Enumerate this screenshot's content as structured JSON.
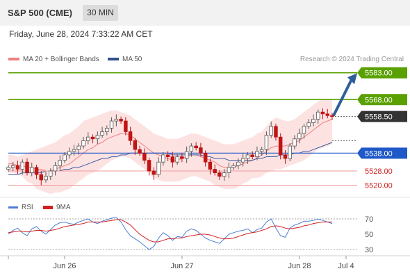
{
  "header": {
    "title": "S&P 500 (CME)",
    "interval": "30 MIN"
  },
  "datetime": "Friday, June 28, 2024 7:33:22 AM CET",
  "legend": [
    {
      "label": "MA 20 + Bollinger Bands",
      "color": "#f08080"
    },
    {
      "label": "MA 50",
      "color": "#2f4f8f"
    }
  ],
  "credit": "Research © 2024 Trading Central",
  "rsi_legend": [
    {
      "label": "RSI",
      "color": "#4a7fd4"
    },
    {
      "label": "9MA",
      "color": "#d22020"
    }
  ],
  "colors": {
    "resistance": "#5aa000",
    "support": "#1f58c7",
    "level_line": "#ef9a9a",
    "arrow": "#2f5f9a",
    "price_label": "#333333",
    "bollinger_fill": "#fde2e2",
    "candle_up": "#555555",
    "candle_down": "#c01515"
  },
  "chart_data": {
    "type": "candlestick",
    "price_axis": {
      "min": 5514,
      "max": 5586
    },
    "x_ticks": [
      "Jun 26",
      "Jun 27",
      "Jun 28",
      "Jul 4"
    ],
    "levels": [
      {
        "value": 5583.0,
        "label": "5583.00",
        "kind": "resistance"
      },
      {
        "value": 5568.0,
        "label": "5568.00",
        "kind": "resistance"
      },
      {
        "value": 5558.5,
        "label": "5558.50",
        "kind": "last"
      },
      {
        "value": 5538.0,
        "label": "5538.00",
        "kind": "support"
      },
      {
        "value": 5528.0,
        "label": "5528.00",
        "kind": "level"
      },
      {
        "value": 5520.0,
        "label": "5520.00",
        "kind": "level"
      }
    ],
    "forecast_arrow": {
      "from": 5559,
      "to": 5582
    },
    "close": [
      5530,
      5531,
      5529,
      5533,
      5527,
      5530,
      5526,
      5523,
      5525,
      5528,
      5531,
      5534,
      5537,
      5539,
      5540,
      5542,
      5545,
      5547,
      5546,
      5548,
      5550,
      5552,
      5556,
      5557,
      5556,
      5550,
      5545,
      5540,
      5538,
      5534,
      5528,
      5526,
      5533,
      5537,
      5536,
      5533,
      5536,
      5535,
      5539,
      5542,
      5541,
      5538,
      5533,
      5529,
      5527,
      5525,
      5527,
      5530,
      5531,
      5533,
      5535,
      5537,
      5536,
      5539,
      5540,
      5548,
      5553,
      5547,
      5537,
      5535,
      5542,
      5546,
      5549,
      5553,
      5555,
      5557,
      5561,
      5560,
      5559,
      5558.5
    ],
    "ma20": [
      5532,
      5532,
      5531,
      5531,
      5530,
      5530,
      5529,
      5529,
      5528,
      5528,
      5529,
      5530,
      5531,
      5532,
      5534,
      5536,
      5538,
      5540,
      5541,
      5543,
      5544,
      5546,
      5547,
      5548,
      5549,
      5549,
      5548,
      5546,
      5544,
      5542,
      5540,
      5538,
      5537,
      5536,
      5535,
      5534,
      5534,
      5535,
      5536,
      5537,
      5537,
      5536,
      5535,
      5534,
      5533,
      5531,
      5530,
      5530,
      5530,
      5531,
      5532,
      5533,
      5534,
      5535,
      5537,
      5539,
      5541,
      5542,
      5542,
      5542,
      5543,
      5544,
      5545,
      5547,
      5549,
      5551,
      5553,
      5555,
      5556,
      5557
    ],
    "bb_upper": [
      5537,
      5537,
      5536,
      5537,
      5538,
      5539,
      5540,
      5541,
      5542,
      5543,
      5544,
      5546,
      5548,
      5549,
      5551,
      5553,
      5556,
      5557,
      5558,
      5559,
      5560,
      5561,
      5562,
      5562,
      5561,
      5560,
      5559,
      5557,
      5555,
      5553,
      5551,
      5549,
      5548,
      5547,
      5546,
      5546,
      5546,
      5547,
      5548,
      5549,
      5549,
      5548,
      5547,
      5546,
      5545,
      5544,
      5543,
      5543,
      5543,
      5544,
      5545,
      5546,
      5547,
      5549,
      5550,
      5553,
      5556,
      5558,
      5557,
      5556,
      5556,
      5557,
      5559,
      5561,
      5563,
      5565,
      5567,
      5568,
      5568,
      5568
    ],
    "bb_lower": [
      5527,
      5527,
      5526,
      5525,
      5522,
      5521,
      5518,
      5517,
      5516,
      5515,
      5516,
      5516,
      5517,
      5518,
      5520,
      5522,
      5524,
      5526,
      5527,
      5528,
      5530,
      5532,
      5534,
      5535,
      5536,
      5536,
      5535,
      5533,
      5531,
      5529,
      5527,
      5524,
      5523,
      5522,
      5522,
      5522,
      5522,
      5523,
      5524,
      5525,
      5525,
      5524,
      5523,
      5522,
      5520,
      5519,
      5518,
      5518,
      5518,
      5519,
      5521,
      5522,
      5524,
      5524,
      5525,
      5527,
      5528,
      5529,
      5529,
      5530,
      5531,
      5532,
      5533,
      5534,
      5536,
      5538,
      5540,
      5541,
      5542,
      5543
    ],
    "ma50": [
      5526,
      5526,
      5526,
      5527,
      5527,
      5527,
      5527,
      5527,
      5528,
      5528,
      5528,
      5528,
      5529,
      5529,
      5530,
      5530,
      5531,
      5532,
      5533,
      5534,
      5535,
      5535,
      5536,
      5536,
      5537,
      5537,
      5538,
      5538,
      5538,
      5538,
      5538,
      5538,
      5538,
      5538,
      5538,
      5537,
      5537,
      5537,
      5537,
      5537,
      5537,
      5537,
      5536,
      5536,
      5535,
      5535,
      5535,
      5534,
      5534,
      5534,
      5534,
      5534,
      5534,
      5535,
      5535,
      5536,
      5536,
      5536,
      5537,
      5537,
      5537,
      5538,
      5538,
      5539,
      5539,
      5540,
      5541,
      5542,
      5543,
      5544
    ],
    "rsi_axis": {
      "min": 20,
      "max": 80,
      "ticks": [
        70,
        50,
        30
      ]
    },
    "rsi": [
      50,
      55,
      58,
      52,
      48,
      57,
      60,
      54,
      50,
      56,
      62,
      65,
      66,
      64,
      63,
      66,
      68,
      70,
      66,
      64,
      67,
      69,
      71,
      72,
      66,
      56,
      48,
      44,
      40,
      35,
      30,
      34,
      45,
      52,
      48,
      42,
      47,
      46,
      54,
      57,
      55,
      50,
      45,
      42,
      40,
      38,
      44,
      50,
      52,
      54,
      55,
      57,
      52,
      56,
      58,
      66,
      70,
      58,
      48,
      46,
      58,
      62,
      64,
      67,
      67,
      68,
      70,
      68,
      66,
      64
    ],
    "rsi_ma": [
      52,
      53,
      54,
      54,
      53,
      54,
      55,
      55,
      54,
      55,
      56,
      58,
      60,
      61,
      62,
      63,
      64,
      66,
      66,
      66,
      66,
      67,
      68,
      69,
      69,
      66,
      62,
      56,
      50,
      46,
      42,
      40,
      40,
      42,
      44,
      44,
      45,
      45,
      47,
      48,
      49,
      50,
      50,
      49,
      47,
      45,
      44,
      44,
      45,
      47,
      49,
      51,
      52,
      53,
      55,
      57,
      60,
      61,
      60,
      58,
      57,
      58,
      59,
      61,
      62,
      64,
      65,
      66,
      66,
      66
    ]
  }
}
